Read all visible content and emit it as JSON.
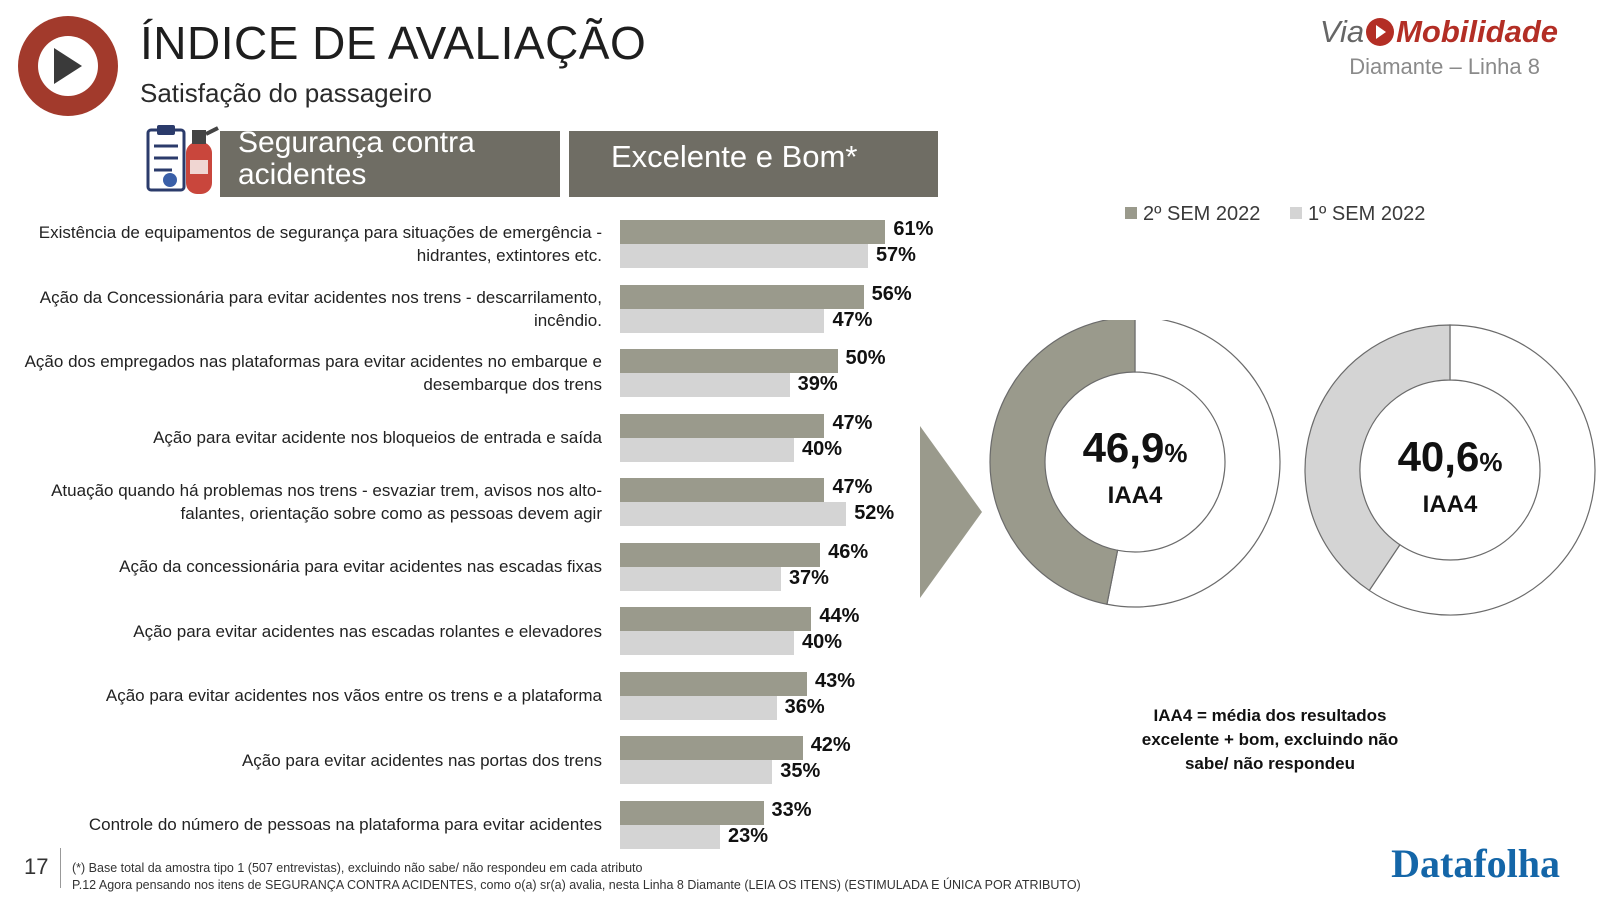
{
  "header": {
    "title": "ÍNDICE DE AVALIAÇÃO",
    "subtitle": "Satisfação do passageiro"
  },
  "brand": {
    "via": "Via",
    "mobilidade": "Mobilidade",
    "line": "Diamante – Linha 8"
  },
  "section": {
    "category": "Segurança contra acidentes",
    "measure": "Excelente e Bom*",
    "icon": "safety-clipboard-extinguisher-icon"
  },
  "colors": {
    "current": "#9a9a8c",
    "previous": "#d4d4d4",
    "header_bg": "#6f6d64",
    "accent_red": "#b32e25",
    "brand_blue": "#1466a8"
  },
  "chart_data": [
    {
      "type": "bar",
      "orientation": "horizontal",
      "categories": [
        "Existência de equipamentos de segurança para situações de emergência - hidrantes, extintores etc.",
        "Ação da Concessionária para evitar acidentes nos trens - descarrilamento, incêndio.",
        "Ação dos empregados nas plataformas para evitar acidentes no embarque e desembarque dos trens",
        "Ação para evitar acidente nos bloqueios de entrada e saída",
        "Atuação quando há problemas nos trens - esvaziar trem, avisos nos alto-falantes, orientação sobre como as pessoas devem agir",
        "Ação da concessionária para evitar acidentes nas escadas fixas",
        "Ação para evitar acidentes nas escadas rolantes e elevadores",
        "Ação para evitar acidentes nos vãos entre os trens e a plataforma",
        "Ação para evitar acidentes nas portas dos trens",
        "Controle do número de pessoas na plataforma para evitar acidentes"
      ],
      "series": [
        {
          "name": "2º SEM 2022",
          "values": [
            61,
            56,
            50,
            47,
            47,
            46,
            44,
            43,
            42,
            33
          ],
          "labels": [
            "61%",
            "56%",
            "50%",
            "47%",
            "47%",
            "46%",
            "44%",
            "43%",
            "42%",
            "33%"
          ]
        },
        {
          "name": "1º SEM 2022",
          "values": [
            57,
            47,
            39,
            40,
            52,
            37,
            40,
            36,
            35,
            23
          ],
          "labels": [
            "57%",
            "47%",
            "39%",
            "40%",
            "52%",
            "37%",
            "40%",
            "36%",
            "35%",
            "23%"
          ]
        }
      ],
      "xlim": [
        0,
        100
      ],
      "legend": "top-right"
    },
    {
      "type": "pie",
      "variant": "donut",
      "series_name": "2º SEM 2022",
      "value": 46.9,
      "value_text": "46,9",
      "unit": "%",
      "label": "IAA4"
    },
    {
      "type": "pie",
      "variant": "donut",
      "series_name": "1º SEM 2022",
      "value": 40.6,
      "value_text": "40,6",
      "unit": "%",
      "label": "IAA4"
    }
  ],
  "note": "IAA4 = média dos resultados excelente + bom, excluindo não sabe/ não respondeu",
  "footer": {
    "page": "17",
    "footnote1": "(*) Base total da amostra tipo 1 (507 entrevistas), excluindo não sabe/ não respondeu em cada atributo",
    "footnote2": "P.12 Agora pensando nos itens de SEGURANÇA CONTRA ACIDENTES, como o(a) sr(a) avalia, nesta Linha 8 Diamante (LEIA OS ITENS) (ESTIMULADA E ÚNICA POR ATRIBUTO)",
    "source_logo": "Datafolha"
  }
}
